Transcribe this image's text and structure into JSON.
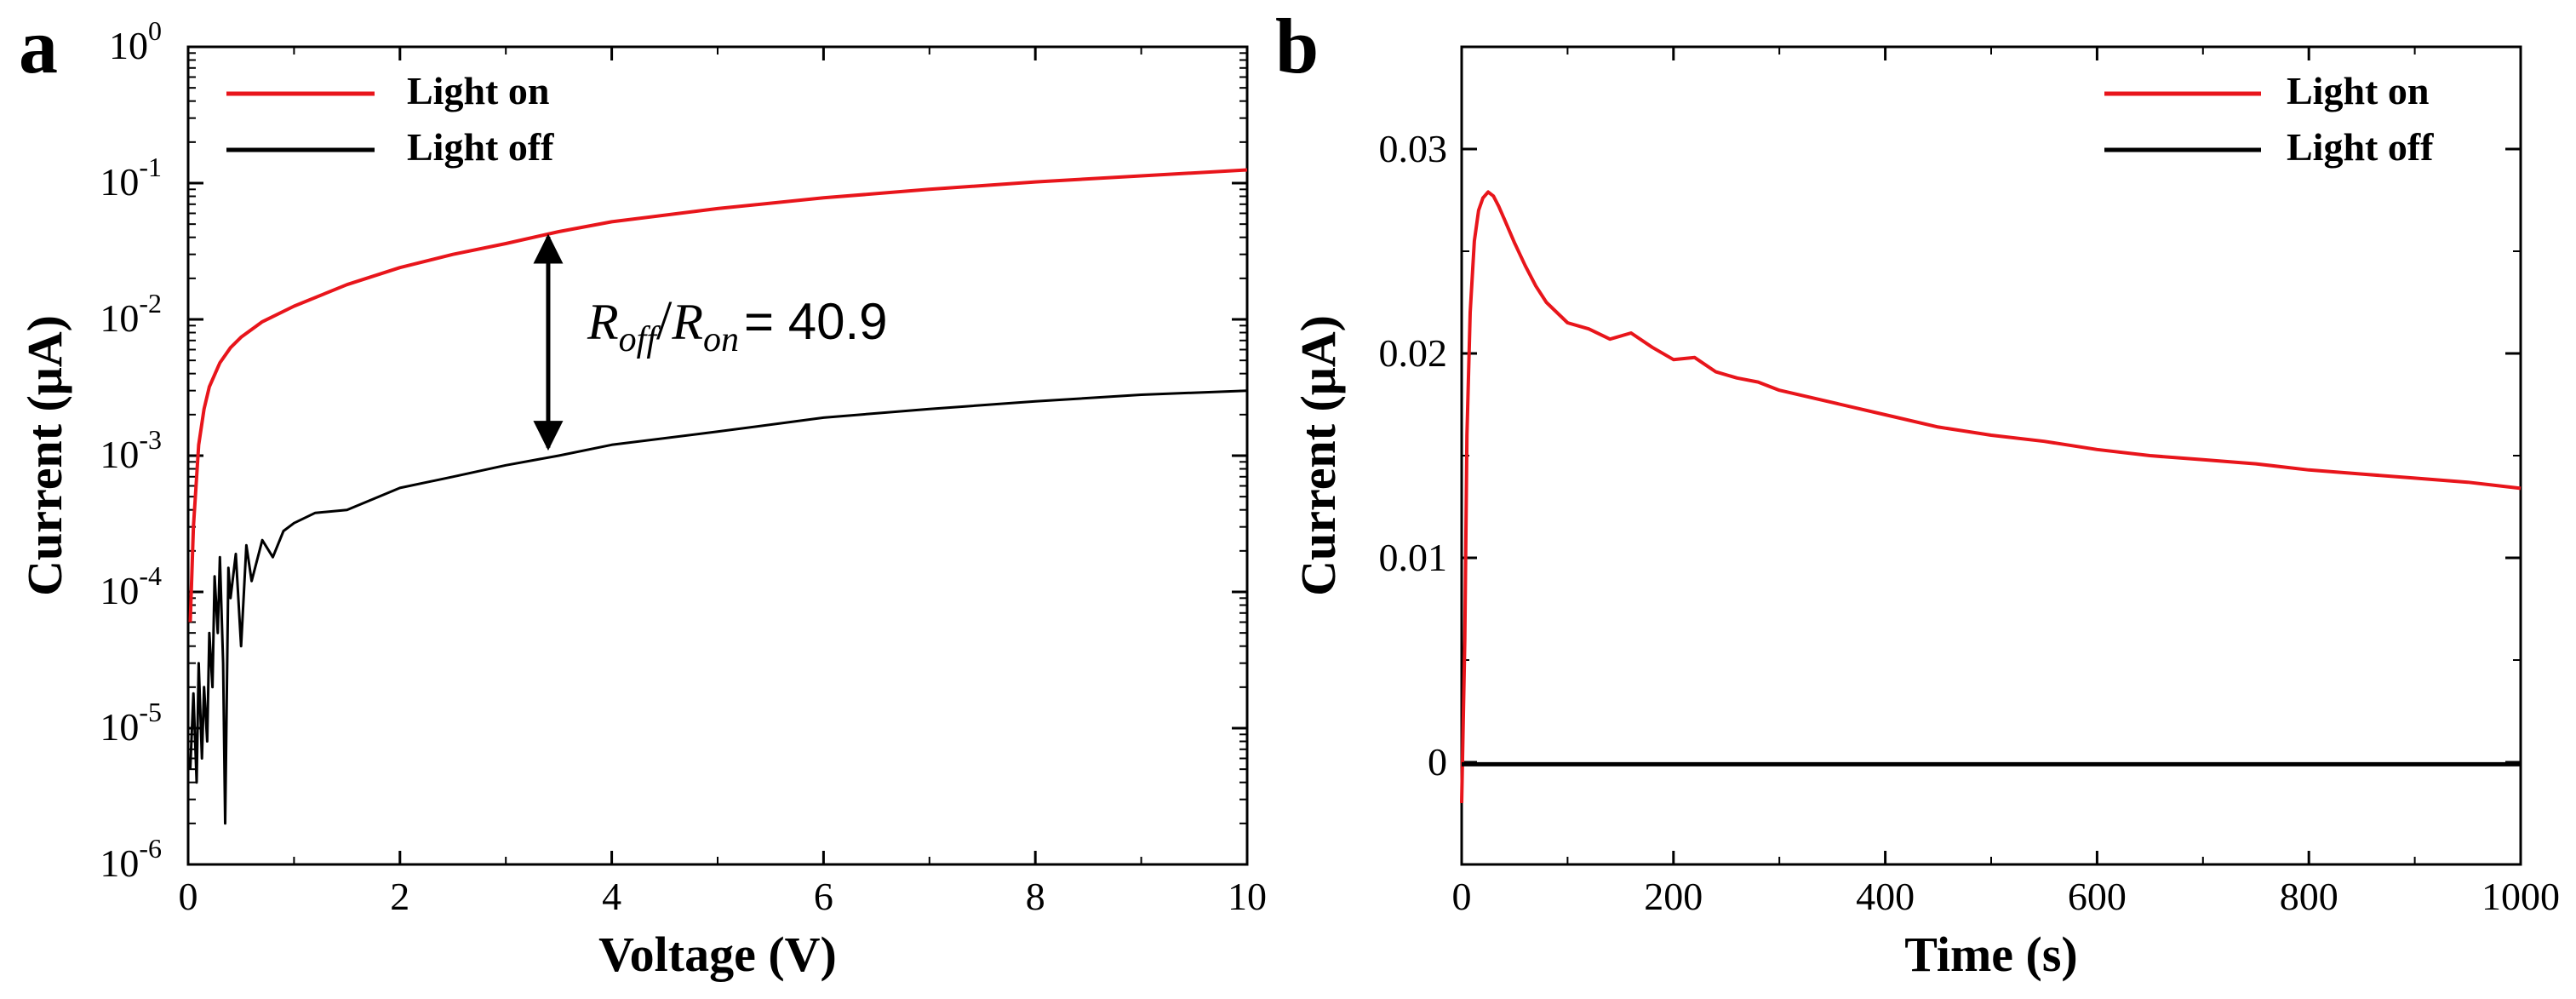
{
  "chart_data": [
    {
      "panel_label": "a",
      "type": "line",
      "xlabel": "Voltage (V)",
      "ylabel": "Current (μA)",
      "yscale": "log",
      "xlim": [
        0,
        10
      ],
      "ylim": [
        1e-06,
        1
      ],
      "xticks": [
        0,
        2,
        4,
        6,
        8,
        10
      ],
      "ytick_base": "10",
      "yticks": [
        {
          "value": 1e-06,
          "exp": "-6"
        },
        {
          "value": 1e-05,
          "exp": "-5"
        },
        {
          "value": 0.0001,
          "exp": "-4"
        },
        {
          "value": 0.001,
          "exp": "-3"
        },
        {
          "value": 0.01,
          "exp": "-2"
        },
        {
          "value": 0.1,
          "exp": "-1"
        },
        {
          "value": 1,
          "exp": "0"
        }
      ],
      "legend_position": "top-left",
      "series": [
        {
          "name": "Light on",
          "color": "#e8151b",
          "x": [
            0.02,
            0.05,
            0.1,
            0.15,
            0.2,
            0.3,
            0.4,
            0.5,
            0.7,
            1.0,
            1.5,
            2.0,
            2.5,
            3.0,
            3.5,
            4.0,
            5.0,
            6.0,
            7.0,
            8.0,
            9.0,
            10.0
          ],
          "y": [
            6e-05,
            0.0003,
            0.0012,
            0.0022,
            0.0032,
            0.0048,
            0.0062,
            0.0074,
            0.0096,
            0.0125,
            0.018,
            0.024,
            0.03,
            0.036,
            0.044,
            0.052,
            0.065,
            0.078,
            0.09,
            0.102,
            0.113,
            0.125
          ]
        },
        {
          "name": "Light off",
          "color": "#000000",
          "x": [
            0.02,
            0.05,
            0.08,
            0.1,
            0.13,
            0.15,
            0.18,
            0.2,
            0.23,
            0.25,
            0.28,
            0.3,
            0.33,
            0.35,
            0.38,
            0.4,
            0.45,
            0.5,
            0.55,
            0.6,
            0.7,
            0.8,
            0.9,
            1.0,
            1.2,
            1.5,
            1.8,
            2.0,
            2.5,
            3.0,
            3.5,
            4.0,
            5.0,
            6.0,
            7.0,
            8.0,
            9.0,
            10.0
          ],
          "y": [
            5e-06,
            1.8e-05,
            4e-06,
            3e-05,
            6e-06,
            2e-05,
            8e-06,
            5e-05,
            2e-05,
            0.00013,
            5e-05,
            0.00018,
            3e-05,
            2e-06,
            0.00015,
            9e-05,
            0.00019,
            4e-05,
            0.00022,
            0.00012,
            0.00024,
            0.00018,
            0.00028,
            0.00032,
            0.00038,
            0.0004,
            0.0005,
            0.00058,
            0.0007,
            0.00085,
            0.001,
            0.0012,
            0.0015,
            0.0019,
            0.0022,
            0.0025,
            0.0028,
            0.003
          ]
        }
      ],
      "annotation": {
        "R": "R",
        "sub_off": "off",
        "slash": "/",
        "sub_on": "on",
        "equals": "= 40.9",
        "arrow_x": 3.4,
        "arrow_y_top": 0.044,
        "arrow_y_bottom": 0.00105
      }
    },
    {
      "panel_label": "b",
      "type": "line",
      "xlabel": "Time (s)",
      "ylabel": "Current (μA)",
      "yscale": "linear",
      "xlim": [
        0,
        1000
      ],
      "ylim": [
        -0.005,
        0.035
      ],
      "xticks": [
        0,
        200,
        400,
        600,
        800,
        1000
      ],
      "yticks": [
        {
          "value": 0,
          "label": "0"
        },
        {
          "value": 0.01,
          "label": "0.01"
        },
        {
          "value": 0.02,
          "label": "0.02"
        },
        {
          "value": 0.03,
          "label": "0.03"
        }
      ],
      "legend_position": "top-right",
      "series": [
        {
          "name": "Light on",
          "color": "#e8151b",
          "x": [
            0,
            3,
            5,
            8,
            12,
            16,
            20,
            25,
            30,
            35,
            40,
            50,
            60,
            70,
            80,
            100,
            120,
            140,
            160,
            180,
            200,
            220,
            240,
            260,
            280,
            300,
            350,
            400,
            450,
            500,
            550,
            600,
            650,
            700,
            750,
            800,
            850,
            900,
            950,
            1000
          ],
          "y": [
            -0.002,
            0.006,
            0.016,
            0.022,
            0.0255,
            0.027,
            0.0276,
            0.0279,
            0.0277,
            0.0272,
            0.0266,
            0.0254,
            0.0243,
            0.0233,
            0.0225,
            0.0215,
            0.0212,
            0.0207,
            0.021,
            0.0203,
            0.0197,
            0.0198,
            0.0191,
            0.0188,
            0.0186,
            0.0182,
            0.0176,
            0.017,
            0.0164,
            0.016,
            0.0157,
            0.0153,
            0.015,
            0.0148,
            0.0146,
            0.0143,
            0.0141,
            0.0139,
            0.0137,
            0.0134
          ]
        },
        {
          "name": "Light off",
          "color": "#000000",
          "x": [
            0,
            100,
            200,
            300,
            400,
            500,
            600,
            700,
            800,
            900,
            1000
          ],
          "y": [
            -0.0001,
            -0.0001,
            -0.0001,
            -0.0001,
            -0.0001,
            -0.0001,
            -0.0001,
            -0.0001,
            -0.0001,
            -0.0001,
            -0.0001
          ]
        }
      ]
    }
  ]
}
